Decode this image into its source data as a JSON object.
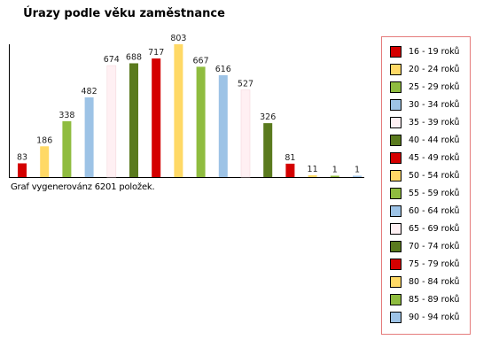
{
  "title": "Úrazy podle věku zaměstnance",
  "footnote": "Graf vygenerovánz 6201 položek.",
  "chart_data": {
    "type": "bar",
    "categories": [
      "16 - 19 roků",
      "20 - 24 roků",
      "25 - 29 roků",
      "30 - 34 roků",
      "35 - 39 roků",
      "40 - 44 roků",
      "45 - 49 roků",
      "50 - 54 roků",
      "55 - 59 roků",
      "60 - 64 roků",
      "65 - 69 roků",
      "70 - 74 roků",
      "75 - 79 roků",
      "80 - 84 roků",
      "85 - 89 roků",
      "90 - 94 roků"
    ],
    "values": [
      83,
      186,
      338,
      482,
      674,
      688,
      717,
      803,
      667,
      616,
      527,
      326,
      81,
      11,
      1,
      1
    ],
    "colors": [
      "#d40000",
      "#ffd966",
      "#8fbc3f",
      "#9dc3e6",
      "#fff0f3",
      "#5a7a1e",
      "#d40000",
      "#ffd966",
      "#8fbc3f",
      "#9dc3e6",
      "#fff0f3",
      "#5a7a1e",
      "#d40000",
      "#ffd966",
      "#8fbc3f",
      "#9dc3e6"
    ],
    "ylim": [
      0,
      803
    ],
    "grid": false,
    "legend_position": "right"
  }
}
